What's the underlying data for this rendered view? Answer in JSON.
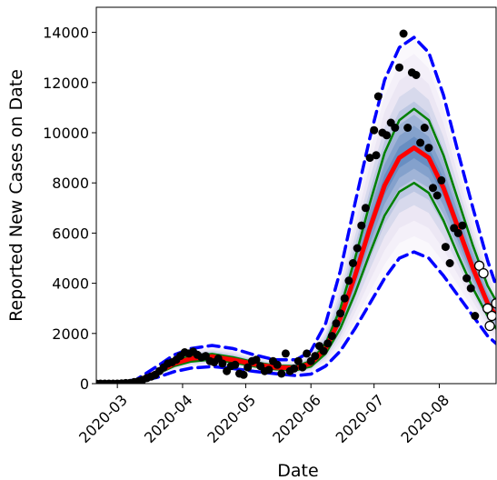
{
  "chart_data": {
    "type": "line",
    "title": "",
    "xlabel": "Date",
    "ylabel": "Reported New Cases on Date",
    "x_tick_labels": [
      "2020-03",
      "2020-04",
      "2020-05",
      "2020-06",
      "2020-07",
      "2020-08"
    ],
    "y_tick_labels": [
      "0",
      "2000",
      "4000",
      "6000",
      "8000",
      "10000",
      "12000",
      "14000"
    ],
    "x_range": [
      "2020-02-20",
      "2020-08-28"
    ],
    "ylim": [
      0,
      15000
    ],
    "colors": {
      "median": "#ff0000",
      "inner_interval": "#008000",
      "outer_interval": "#0000ff",
      "band": "#1f5fa8",
      "observed": "#000000",
      "held_out": "#ffffff"
    },
    "series": [
      {
        "role": "median",
        "points": [
          [
            "2020-02-20",
            0
          ],
          [
            "2020-03-01",
            20
          ],
          [
            "2020-03-10",
            100
          ],
          [
            "2020-03-20",
            450
          ],
          [
            "2020-03-28",
            800
          ],
          [
            "2020-04-05",
            1000
          ],
          [
            "2020-04-15",
            1080
          ],
          [
            "2020-04-25",
            950
          ],
          [
            "2020-05-05",
            780
          ],
          [
            "2020-05-15",
            650
          ],
          [
            "2020-05-25",
            620
          ],
          [
            "2020-06-01",
            800
          ],
          [
            "2020-06-08",
            1400
          ],
          [
            "2020-06-15",
            2600
          ],
          [
            "2020-06-22",
            4300
          ],
          [
            "2020-06-29",
            6200
          ],
          [
            "2020-07-06",
            7900
          ],
          [
            "2020-07-13",
            9000
          ],
          [
            "2020-07-20",
            9400
          ],
          [
            "2020-07-27",
            9000
          ],
          [
            "2020-08-03",
            7800
          ],
          [
            "2020-08-10",
            6200
          ],
          [
            "2020-08-17",
            4600
          ],
          [
            "2020-08-24",
            3200
          ],
          [
            "2020-08-28",
            2700
          ]
        ]
      },
      {
        "role": "inner-upper",
        "points": [
          [
            "2020-02-20",
            0
          ],
          [
            "2020-03-01",
            25
          ],
          [
            "2020-03-10",
            110
          ],
          [
            "2020-03-20",
            500
          ],
          [
            "2020-03-28",
            900
          ],
          [
            "2020-04-05",
            1100
          ],
          [
            "2020-04-15",
            1180
          ],
          [
            "2020-04-25",
            1050
          ],
          [
            "2020-05-05",
            860
          ],
          [
            "2020-05-15",
            720
          ],
          [
            "2020-05-25",
            700
          ],
          [
            "2020-06-01",
            900
          ],
          [
            "2020-06-08",
            1600
          ],
          [
            "2020-06-15",
            3000
          ],
          [
            "2020-06-22",
            5000
          ],
          [
            "2020-06-29",
            7200
          ],
          [
            "2020-07-06",
            9200
          ],
          [
            "2020-07-13",
            10500
          ],
          [
            "2020-07-20",
            10950
          ],
          [
            "2020-07-27",
            10500
          ],
          [
            "2020-08-03",
            9100
          ],
          [
            "2020-08-10",
            7300
          ],
          [
            "2020-08-17",
            5500
          ],
          [
            "2020-08-24",
            3900
          ],
          [
            "2020-08-28",
            3300
          ]
        ]
      },
      {
        "role": "inner-lower",
        "points": [
          [
            "2020-02-20",
            0
          ],
          [
            "2020-03-01",
            15
          ],
          [
            "2020-03-10",
            85
          ],
          [
            "2020-03-20",
            390
          ],
          [
            "2020-03-28",
            700
          ],
          [
            "2020-04-05",
            880
          ],
          [
            "2020-04-15",
            960
          ],
          [
            "2020-04-25",
            850
          ],
          [
            "2020-05-05",
            690
          ],
          [
            "2020-05-15",
            570
          ],
          [
            "2020-05-25",
            540
          ],
          [
            "2020-06-01",
            680
          ],
          [
            "2020-06-08",
            1200
          ],
          [
            "2020-06-15",
            2200
          ],
          [
            "2020-06-22",
            3600
          ],
          [
            "2020-06-29",
            5200
          ],
          [
            "2020-07-06",
            6700
          ],
          [
            "2020-07-13",
            7650
          ],
          [
            "2020-07-20",
            8000
          ],
          [
            "2020-07-27",
            7600
          ],
          [
            "2020-08-03",
            6500
          ],
          [
            "2020-08-10",
            5100
          ],
          [
            "2020-08-17",
            3800
          ],
          [
            "2020-08-24",
            2700
          ],
          [
            "2020-08-28",
            2200
          ]
        ]
      },
      {
        "role": "outer-upper",
        "points": [
          [
            "2020-02-20",
            0
          ],
          [
            "2020-03-01",
            40
          ],
          [
            "2020-03-10",
            160
          ],
          [
            "2020-03-20",
            700
          ],
          [
            "2020-03-28",
            1150
          ],
          [
            "2020-04-05",
            1400
          ],
          [
            "2020-04-15",
            1520
          ],
          [
            "2020-04-25",
            1400
          ],
          [
            "2020-05-05",
            1150
          ],
          [
            "2020-05-15",
            950
          ],
          [
            "2020-05-25",
            950
          ],
          [
            "2020-06-01",
            1300
          ],
          [
            "2020-06-08",
            2400
          ],
          [
            "2020-06-15",
            4500
          ],
          [
            "2020-06-22",
            7200
          ],
          [
            "2020-06-29",
            9800
          ],
          [
            "2020-07-06",
            12100
          ],
          [
            "2020-07-13",
            13400
          ],
          [
            "2020-07-20",
            13800
          ],
          [
            "2020-07-27",
            13200
          ],
          [
            "2020-08-03",
            11500
          ],
          [
            "2020-08-10",
            9200
          ],
          [
            "2020-08-17",
            7000
          ],
          [
            "2020-08-24",
            4900
          ],
          [
            "2020-08-28",
            3900
          ]
        ]
      },
      {
        "role": "outer-lower",
        "points": [
          [
            "2020-02-20",
            0
          ],
          [
            "2020-03-01",
            8
          ],
          [
            "2020-03-10",
            55
          ],
          [
            "2020-03-20",
            250
          ],
          [
            "2020-03-28",
            480
          ],
          [
            "2020-04-05",
            620
          ],
          [
            "2020-04-15",
            680
          ],
          [
            "2020-04-25",
            600
          ],
          [
            "2020-05-05",
            490
          ],
          [
            "2020-05-15",
            400
          ],
          [
            "2020-05-25",
            320
          ],
          [
            "2020-06-01",
            380
          ],
          [
            "2020-06-08",
            700
          ],
          [
            "2020-06-15",
            1300
          ],
          [
            "2020-06-22",
            2200
          ],
          [
            "2020-06-29",
            3200
          ],
          [
            "2020-07-06",
            4200
          ],
          [
            "2020-07-13",
            5000
          ],
          [
            "2020-07-20",
            5250
          ],
          [
            "2020-07-27",
            5000
          ],
          [
            "2020-08-03",
            4300
          ],
          [
            "2020-08-10",
            3500
          ],
          [
            "2020-08-17",
            2700
          ],
          [
            "2020-08-24",
            1900
          ],
          [
            "2020-08-28",
            1600
          ]
        ]
      },
      {
        "role": "observed",
        "points": [
          [
            "2020-02-20",
            0
          ],
          [
            "2020-02-22",
            0
          ],
          [
            "2020-02-24",
            0
          ],
          [
            "2020-02-26",
            0
          ],
          [
            "2020-02-28",
            0
          ],
          [
            "2020-03-01",
            0
          ],
          [
            "2020-03-03",
            10
          ],
          [
            "2020-03-05",
            20
          ],
          [
            "2020-03-07",
            30
          ],
          [
            "2020-03-09",
            60
          ],
          [
            "2020-03-11",
            90
          ],
          [
            "2020-03-13",
            150
          ],
          [
            "2020-03-15",
            220
          ],
          [
            "2020-03-17",
            280
          ],
          [
            "2020-03-19",
            350
          ],
          [
            "2020-03-21",
            500
          ],
          [
            "2020-03-23",
            650
          ],
          [
            "2020-03-25",
            800
          ],
          [
            "2020-03-27",
            850
          ],
          [
            "2020-03-29",
            950
          ],
          [
            "2020-03-31",
            1100
          ],
          [
            "2020-04-02",
            1250
          ],
          [
            "2020-04-04",
            1200
          ],
          [
            "2020-04-06",
            1280
          ],
          [
            "2020-04-08",
            1150
          ],
          [
            "2020-04-10",
            1050
          ],
          [
            "2020-04-12",
            1100
          ],
          [
            "2020-04-14",
            900
          ],
          [
            "2020-04-16",
            850
          ],
          [
            "2020-04-18",
            1000
          ],
          [
            "2020-04-20",
            800
          ],
          [
            "2020-04-22",
            500
          ],
          [
            "2020-04-24",
            700
          ],
          [
            "2020-04-26",
            750
          ],
          [
            "2020-04-28",
            400
          ],
          [
            "2020-04-30",
            350
          ],
          [
            "2020-05-02",
            650
          ],
          [
            "2020-05-04",
            900
          ],
          [
            "2020-05-06",
            950
          ],
          [
            "2020-05-08",
            700
          ],
          [
            "2020-05-10",
            500
          ],
          [
            "2020-05-12",
            550
          ],
          [
            "2020-05-14",
            900
          ],
          [
            "2020-05-16",
            750
          ],
          [
            "2020-05-18",
            400
          ],
          [
            "2020-05-20",
            1200
          ],
          [
            "2020-05-22",
            500
          ],
          [
            "2020-05-24",
            600
          ],
          [
            "2020-05-26",
            900
          ],
          [
            "2020-05-28",
            650
          ],
          [
            "2020-05-30",
            1200
          ],
          [
            "2020-06-01",
            900
          ],
          [
            "2020-06-03",
            1100
          ],
          [
            "2020-06-05",
            1500
          ],
          [
            "2020-06-07",
            1300
          ],
          [
            "2020-06-09",
            1600
          ],
          [
            "2020-06-11",
            1900
          ],
          [
            "2020-06-13",
            2400
          ],
          [
            "2020-06-15",
            2800
          ],
          [
            "2020-06-17",
            3400
          ],
          [
            "2020-06-19",
            4100
          ],
          [
            "2020-06-21",
            4800
          ],
          [
            "2020-06-23",
            5400
          ],
          [
            "2020-06-25",
            6300
          ],
          [
            "2020-06-27",
            7000
          ],
          [
            "2020-06-29",
            9000
          ],
          [
            "2020-07-01",
            10100
          ],
          [
            "2020-07-02",
            9100
          ],
          [
            "2020-07-03",
            11450
          ],
          [
            "2020-07-05",
            10000
          ],
          [
            "2020-07-07",
            9900
          ],
          [
            "2020-07-09",
            10400
          ],
          [
            "2020-07-11",
            10200
          ],
          [
            "2020-07-13",
            12600
          ],
          [
            "2020-07-15",
            13950
          ],
          [
            "2020-07-17",
            10200
          ],
          [
            "2020-07-19",
            12400
          ],
          [
            "2020-07-21",
            12300
          ],
          [
            "2020-07-23",
            9600
          ],
          [
            "2020-07-25",
            10200
          ],
          [
            "2020-07-27",
            9400
          ],
          [
            "2020-07-29",
            7800
          ],
          [
            "2020-07-31",
            7500
          ],
          [
            "2020-08-02",
            8100
          ],
          [
            "2020-08-04",
            5450
          ],
          [
            "2020-08-06",
            4800
          ],
          [
            "2020-08-08",
            6200
          ],
          [
            "2020-08-10",
            6000
          ],
          [
            "2020-08-12",
            6300
          ],
          [
            "2020-08-14",
            4200
          ],
          [
            "2020-08-16",
            3800
          ],
          [
            "2020-08-18",
            2700
          ]
        ]
      },
      {
        "role": "held-out",
        "points": [
          [
            "2020-08-20",
            4700
          ],
          [
            "2020-08-22",
            4400
          ],
          [
            "2020-08-24",
            3000
          ],
          [
            "2020-08-25",
            2300
          ],
          [
            "2020-08-26",
            2700
          ],
          [
            "2020-08-28",
            3200
          ]
        ]
      }
    ]
  }
}
